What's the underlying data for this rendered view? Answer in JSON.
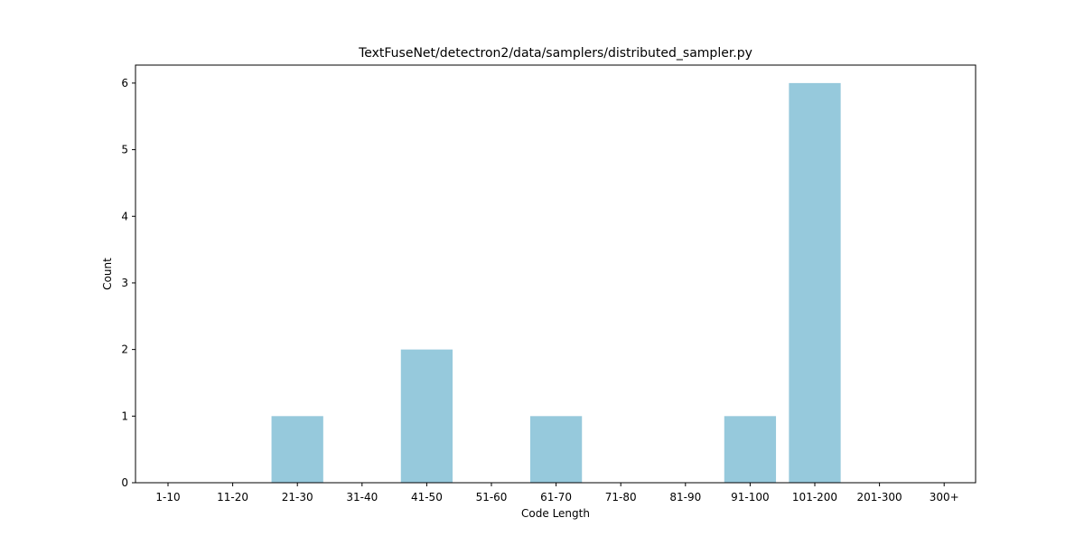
{
  "chart_data": {
    "type": "bar",
    "title": "TextFuseNet/detectron2/data/samplers/distributed_sampler.py",
    "xlabel": "Code Length",
    "ylabel": "Count",
    "categories": [
      "1-10",
      "11-20",
      "21-30",
      "31-40",
      "41-50",
      "51-60",
      "61-70",
      "71-80",
      "81-90",
      "91-100",
      "101-200",
      "201-300",
      "300+"
    ],
    "values": [
      0,
      0,
      1,
      0,
      2,
      0,
      1,
      0,
      0,
      1,
      6,
      0,
      0
    ],
    "ylim": [
      0,
      6.27
    ],
    "yticks": [
      0,
      1,
      2,
      3,
      4,
      5,
      6
    ],
    "grid": false,
    "legend": "none",
    "bar_color": "#96c9dc"
  }
}
